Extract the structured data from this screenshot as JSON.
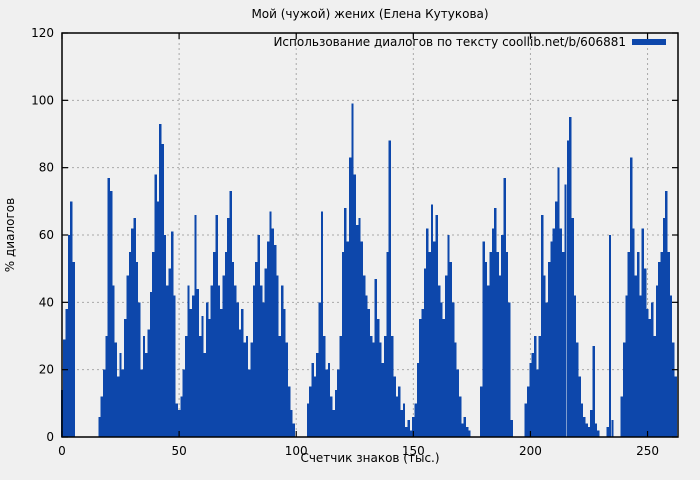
{
  "window": {
    "background_color": "#f0f0f0"
  },
  "chart_data": {
    "type": "bar",
    "title": "Мой (чужой) жених (Елена Кутукова)",
    "xlabel": "Счетчик знаков (тыс.)",
    "ylabel": "% диалогов",
    "series_name": "Использование диалогов по тексту coollib.net/b/606881",
    "legend_position": "top-right",
    "grid": true,
    "bar_color": "#0d47ab",
    "grid_color": "#a9a9a9",
    "xlim": [
      0,
      263
    ],
    "ylim": [
      0,
      120
    ],
    "xticks": [
      0,
      50,
      100,
      150,
      200,
      250
    ],
    "yticks": [
      0,
      20,
      40,
      60,
      80,
      100,
      120
    ],
    "values": [
      14,
      29,
      38,
      60,
      70,
      52,
      0,
      0,
      0,
      0,
      0,
      0,
      0,
      0,
      0,
      0,
      6,
      12,
      20,
      30,
      77,
      73,
      45,
      28,
      18,
      25,
      20,
      35,
      48,
      55,
      62,
      65,
      52,
      40,
      20,
      30,
      25,
      32,
      43,
      55,
      78,
      70,
      93,
      87,
      60,
      45,
      50,
      61,
      42,
      10,
      8,
      12,
      20,
      30,
      45,
      38,
      42,
      66,
      44,
      30,
      36,
      25,
      40,
      35,
      45,
      55,
      66,
      45,
      38,
      48,
      55,
      65,
      73,
      52,
      45,
      40,
      32,
      38,
      28,
      30,
      20,
      28,
      45,
      52,
      60,
      45,
      40,
      50,
      58,
      67,
      62,
      57,
      48,
      30,
      45,
      38,
      28,
      15,
      8,
      4,
      0,
      0,
      0,
      0,
      0,
      10,
      15,
      22,
      18,
      25,
      40,
      67,
      30,
      20,
      22,
      12,
      8,
      14,
      20,
      30,
      55,
      68,
      58,
      83,
      99,
      78,
      63,
      65,
      58,
      48,
      42,
      38,
      30,
      28,
      47,
      35,
      28,
      22,
      30,
      55,
      88,
      30,
      18,
      12,
      15,
      8,
      10,
      3,
      5,
      2,
      6,
      10,
      22,
      35,
      38,
      50,
      62,
      55,
      69,
      58,
      66,
      45,
      40,
      35,
      48,
      60,
      52,
      40,
      28,
      20,
      12,
      4,
      6,
      3,
      2,
      0,
      0,
      0,
      0,
      15,
      58,
      52,
      45,
      55,
      62,
      68,
      55,
      48,
      60,
      77,
      55,
      40,
      5,
      0,
      0,
      0,
      0,
      0,
      10,
      15,
      22,
      25,
      30,
      20,
      30,
      66,
      48,
      40,
      52,
      58,
      62,
      70,
      80,
      62,
      55,
      75,
      88,
      95,
      65,
      42,
      28,
      18,
      10,
      6,
      4,
      3,
      8,
      27,
      4,
      2,
      0,
      0,
      0,
      3,
      60,
      5,
      0,
      0,
      0,
      12,
      28,
      42,
      55,
      83,
      62,
      48,
      55,
      42,
      62,
      50,
      38,
      35,
      40,
      30,
      45,
      52,
      55,
      65,
      73,
      55,
      42,
      28,
      18
    ]
  }
}
